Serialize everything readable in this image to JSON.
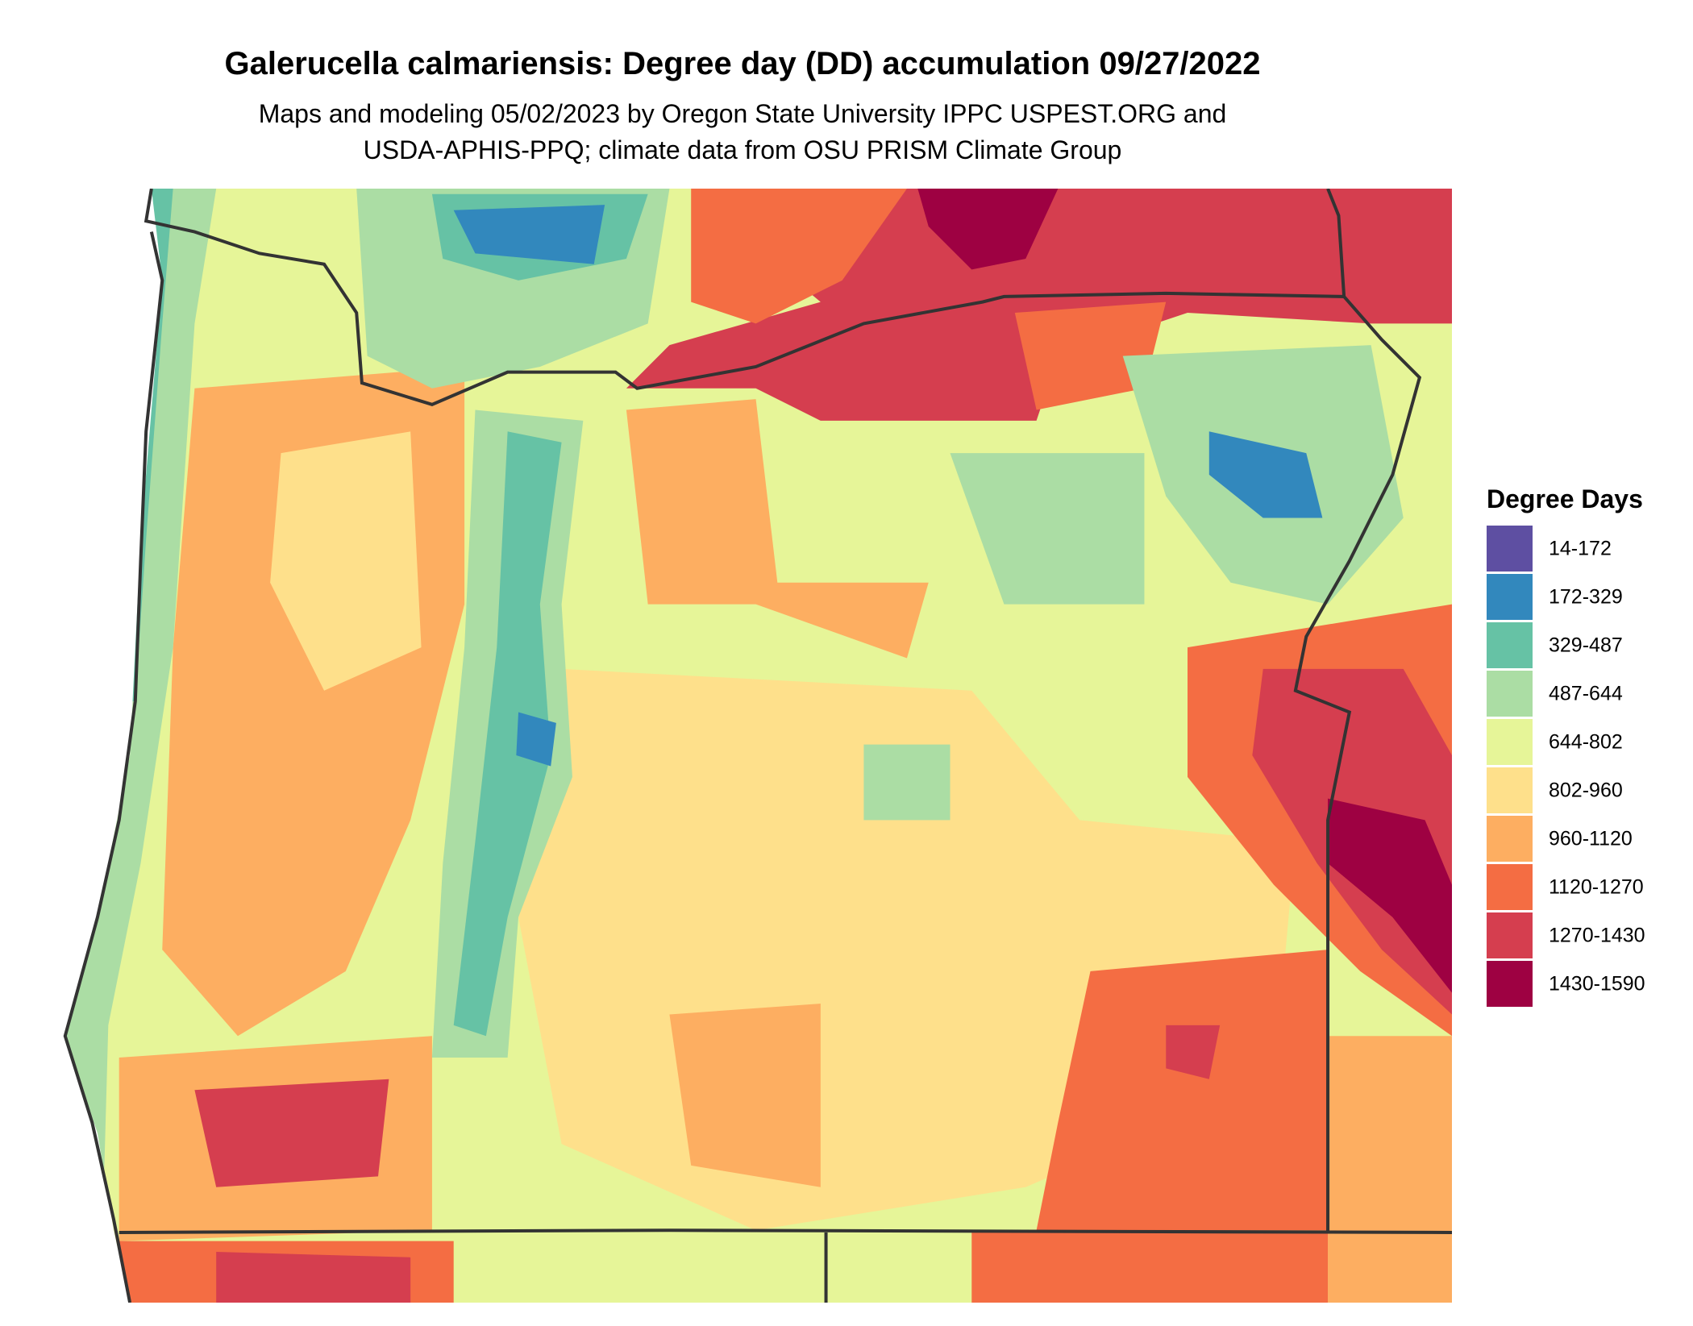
{
  "title": "Galerucella calmariensis: Degree day (DD) accumulation 09/27/2022",
  "subtitle": [
    "Maps and modeling 05/02/2023 by Oregon State University IPPC USPEST.ORG and",
    "USDA-APHIS-PPQ; climate data from OSU PRISM Climate Group"
  ],
  "legend": {
    "title": "Degree Days",
    "items": [
      {
        "label": "14-172",
        "color": "#5e4fa2"
      },
      {
        "label": "172-329",
        "color": "#3288bd"
      },
      {
        "label": "329-487",
        "color": "#66c2a5"
      },
      {
        "label": "487-644",
        "color": "#abdda4"
      },
      {
        "label": "644-802",
        "color": "#e6f598"
      },
      {
        "label": "802-960",
        "color": "#fee08b"
      },
      {
        "label": "960-1120",
        "color": "#fdae61"
      },
      {
        "label": "1120-1270",
        "color": "#f46d43"
      },
      {
        "label": "1270-1430",
        "color": "#d53e4f"
      },
      {
        "label": "1430-1590",
        "color": "#9e0142"
      }
    ]
  }
}
